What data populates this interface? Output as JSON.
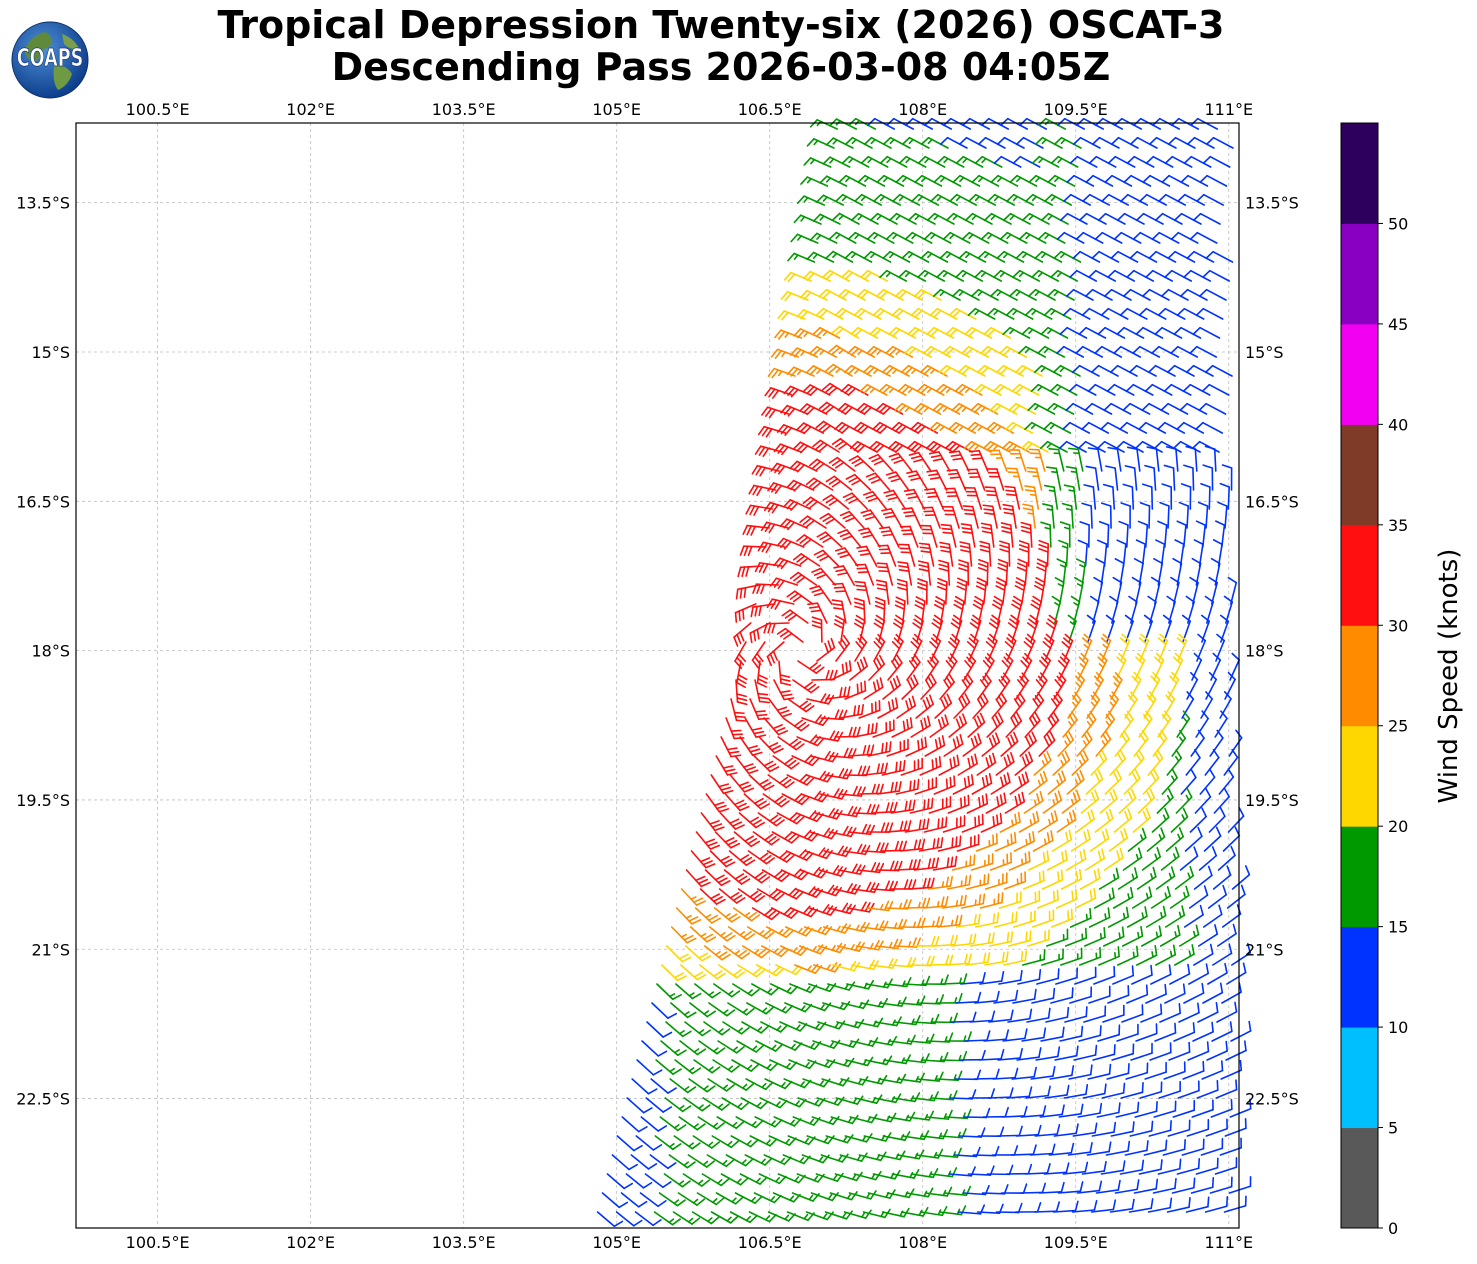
{
  "title": {
    "line1": "Tropical Depression Twenty-six (2026) OSCAT-3",
    "line2": "Descending Pass 2026-03-08 04:05Z"
  },
  "logo": {
    "icon": "coaps-globe-logo",
    "text": "COAPS"
  },
  "map": {
    "lon_range": [
      99.7,
      111.1
    ],
    "lat_range": [
      -23.8,
      -12.7
    ],
    "lon_ticks": [
      {
        "value": 100.5,
        "label": "100.5°E"
      },
      {
        "value": 102.0,
        "label": "102°E"
      },
      {
        "value": 103.5,
        "label": "103.5°E"
      },
      {
        "value": 105.0,
        "label": "105°E"
      },
      {
        "value": 106.5,
        "label": "106.5°E"
      },
      {
        "value": 108.0,
        "label": "108°E"
      },
      {
        "value": 109.5,
        "label": "109.5°E"
      },
      {
        "value": 111.0,
        "label": "111°E"
      }
    ],
    "lat_ticks": [
      {
        "value": -13.5,
        "label": "13.5°S"
      },
      {
        "value": -15.0,
        "label": "15°S"
      },
      {
        "value": -16.5,
        "label": "16.5°S"
      },
      {
        "value": -18.0,
        "label": "18°S"
      },
      {
        "value": -19.5,
        "label": "19.5°S"
      },
      {
        "value": -21.0,
        "label": "21°S"
      },
      {
        "value": -22.5,
        "label": "22.5°S"
      }
    ],
    "grid": true,
    "gridline_style": "dashed",
    "wind_field": {
      "type": "wind barbs",
      "center_lat": -18.0,
      "center_lon": 106.8,
      "max_speed_knots": 33,
      "swath_west_edge": [
        {
          "lat": -12.7,
          "lon": 107.0
        },
        {
          "lat": -17.5,
          "lon": 106.2
        },
        {
          "lat": -23.8,
          "lon": 104.6
        }
      ]
    }
  },
  "colorbar": {
    "label": "Wind Speed (knots)",
    "bins": [
      {
        "from": 0,
        "to": 5,
        "color": "#595959"
      },
      {
        "from": 5,
        "to": 10,
        "color": "#00BFFF"
      },
      {
        "from": 10,
        "to": 15,
        "color": "#0033FF"
      },
      {
        "from": 15,
        "to": 20,
        "color": "#009900"
      },
      {
        "from": 20,
        "to": 25,
        "color": "#FFD700"
      },
      {
        "from": 25,
        "to": 30,
        "color": "#FF8C00"
      },
      {
        "from": 30,
        "to": 35,
        "color": "#FF0F0F"
      },
      {
        "from": 35,
        "to": 40,
        "color": "#7F3A28"
      },
      {
        "from": 40,
        "to": 45,
        "color": "#F200F2"
      },
      {
        "from": 45,
        "to": 50,
        "color": "#8A00C2"
      },
      {
        "from": 50,
        "to": 55,
        "color": "#2E005E"
      }
    ],
    "tick_labels": [
      "0",
      "5",
      "10",
      "15",
      "20",
      "25",
      "30",
      "35",
      "40",
      "45",
      "50"
    ]
  }
}
